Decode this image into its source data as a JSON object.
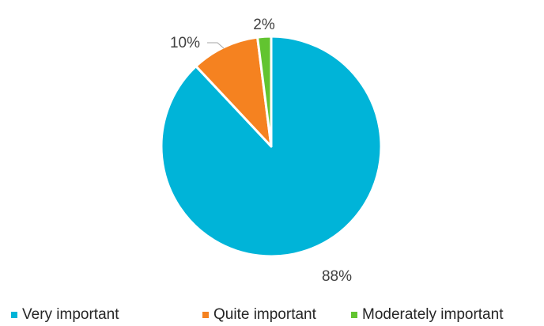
{
  "chart_data": {
    "type": "pie",
    "title": "",
    "slices": [
      {
        "label": "Very important",
        "value": 88,
        "data_label": "88%",
        "color": "#00B4D8"
      },
      {
        "label": "Quite important",
        "value": 10,
        "data_label": "10%",
        "color": "#F58220"
      },
      {
        "label": "Moderately important",
        "value": 2,
        "data_label": "2%",
        "color": "#62C430"
      }
    ],
    "start_angle_deg": 0,
    "direction": "clockwise",
    "legend_position": "bottom",
    "slice_border_color": "#ffffff"
  }
}
